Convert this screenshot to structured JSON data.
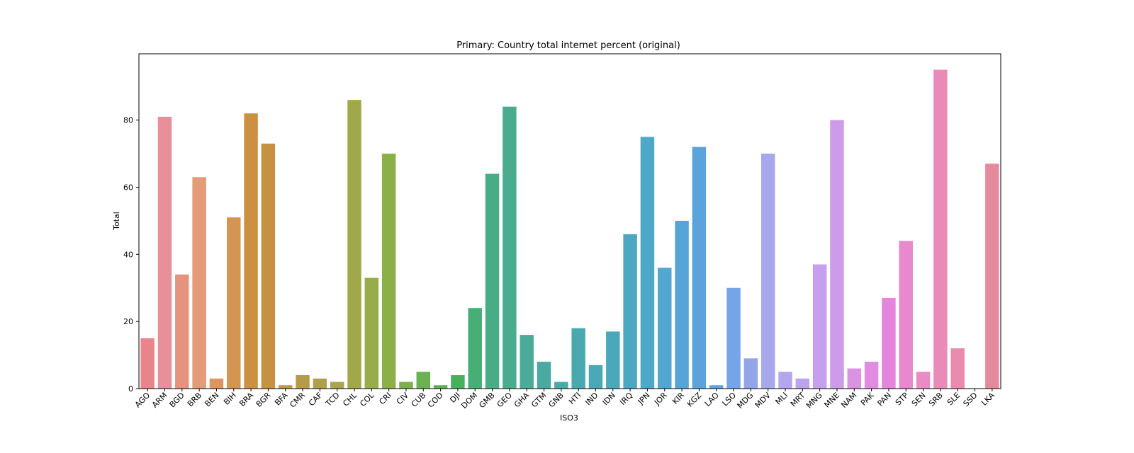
{
  "chart_data": {
    "type": "bar",
    "title": "Primary: Country total internet percent (original)",
    "xlabel": "ISO3",
    "ylabel": "Total",
    "ylim": [
      0,
      99.75
    ],
    "yticks": [
      0,
      20,
      40,
      60,
      80
    ],
    "grid": false,
    "legend": "none",
    "categories": [
      "AGO",
      "ARM",
      "BGD",
      "BRB",
      "BEN",
      "BIH",
      "BRA",
      "BGR",
      "BFA",
      "CMR",
      "CAF",
      "TCD",
      "CHL",
      "COL",
      "CRI",
      "CIV",
      "CUB",
      "COD",
      "DJI",
      "DOM",
      "GMB",
      "GEO",
      "GHA",
      "GTM",
      "GNB",
      "HTI",
      "IND",
      "IDN",
      "IRQ",
      "JPN",
      "JOR",
      "KIR",
      "KGZ",
      "LAO",
      "LSO",
      "MDG",
      "MDV",
      "MLI",
      "MRT",
      "MNG",
      "MNE",
      "NAM",
      "PAK",
      "PAN",
      "STP",
      "SEN",
      "SRB",
      "SLE",
      "SSD",
      "LKA"
    ],
    "values": [
      15,
      81,
      34,
      63,
      3,
      51,
      82,
      73,
      1,
      4,
      3,
      2,
      86,
      33,
      70,
      2,
      5,
      1,
      4,
      24,
      64,
      84,
      16,
      8,
      2,
      18,
      7,
      17,
      46,
      75,
      36,
      50,
      72,
      1,
      30,
      9,
      70,
      5,
      3,
      37,
      80,
      6,
      8,
      27,
      44,
      5,
      95,
      12,
      0,
      67
    ],
    "colors": [
      "#e8858b",
      "#e8909a",
      "#e5927e",
      "#e49b77",
      "#dd9660",
      "#d59552",
      "#cd9043",
      "#c49240",
      "#bc9844",
      "#b69b47",
      "#b0a04b",
      "#aaa44e",
      "#a0a84a",
      "#97ad49",
      "#8bb048",
      "#7bb14c",
      "#6ab14f",
      "#58b04f",
      "#46b05f",
      "#47ae76",
      "#48ad84",
      "#4aab8f",
      "#4bab99",
      "#4aaaa1",
      "#4baaa8",
      "#4aa9ae",
      "#4aa9b5",
      "#4ba8bb",
      "#4ca8c2",
      "#4ea8c9",
      "#51a7cf",
      "#56a5d6",
      "#5ba3dc",
      "#5ea1e1",
      "#76a4e8",
      "#92a5ea",
      "#a7a8ec",
      "#b3a6ee",
      "#bca3ef",
      "#c6a0ee",
      "#cd9be9",
      "#da93e3",
      "#e08ce0",
      "#e486db",
      "#e889cf",
      "#e98bc4",
      "#e98bb8",
      "#e98aae",
      "#e88aa6",
      "#e58a9c"
    ]
  }
}
